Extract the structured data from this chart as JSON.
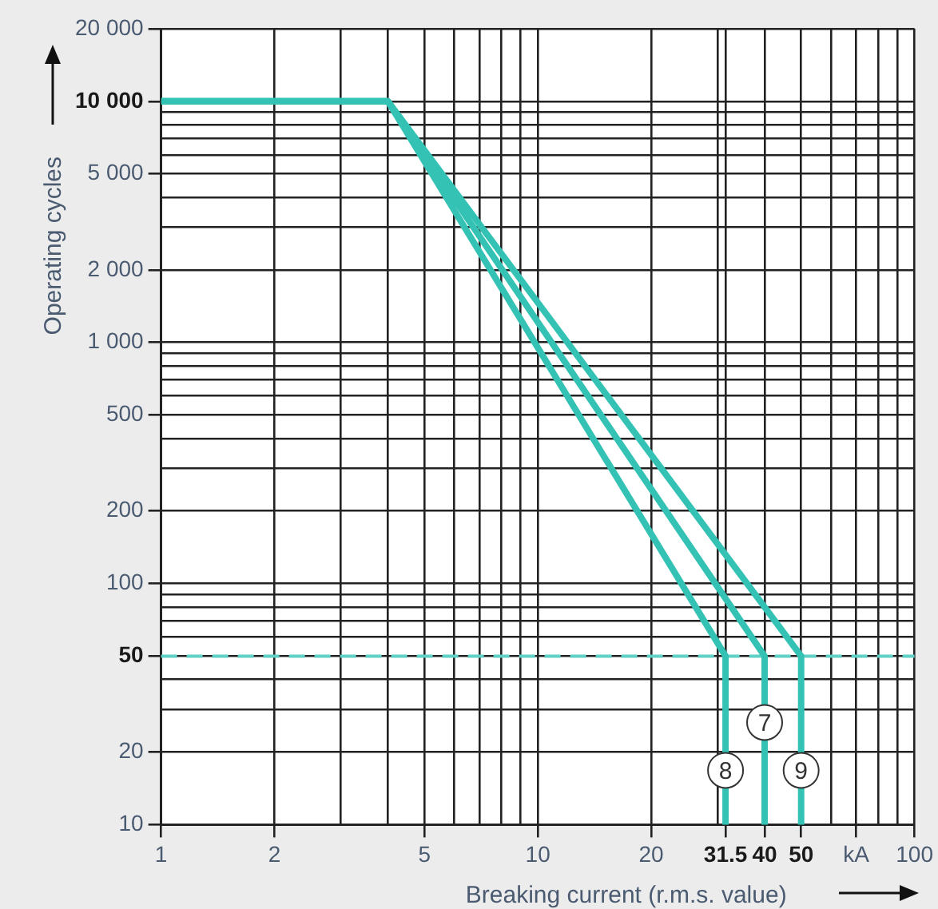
{
  "chart_data": {
    "type": "line",
    "xlabel": "Breaking current (r.m.s. value)",
    "ylabel": "Operating cycles",
    "log": "xy",
    "grid": true,
    "marker": "none",
    "line_style": "solid",
    "xlim": [
      1,
      100
    ],
    "ylim": [
      10,
      20000
    ],
    "xticks": [
      1,
      2,
      {
        "value": 3,
        "label": null
      },
      {
        "value": 4,
        "label": null
      },
      5,
      {
        "value": 6,
        "label": null
      },
      {
        "value": 7,
        "label": null
      },
      {
        "value": 8,
        "label": null
      },
      {
        "value": 9,
        "label": null
      },
      10,
      20,
      {
        "value": 30,
        "label": null
      },
      31.5,
      40,
      50,
      {
        "value": 60,
        "label": null
      },
      {
        "value": 70,
        "label": "kA"
      },
      {
        "value": 80,
        "label": null
      },
      {
        "value": 90,
        "label": null
      },
      100
    ],
    "yticks": [
      10,
      20,
      {
        "value": 30,
        "label": null
      },
      {
        "value": 40,
        "label": null
      },
      50,
      {
        "value": 60,
        "label": null
      },
      {
        "value": 70,
        "label": null
      },
      {
        "value": 80,
        "label": null
      },
      {
        "value": 90,
        "label": null
      },
      100,
      200,
      {
        "value": 300,
        "label": null
      },
      {
        "value": 400,
        "label": null
      },
      500,
      {
        "value": 600,
        "label": null
      },
      {
        "value": 700,
        "label": null
      },
      {
        "value": 800,
        "label": null
      },
      {
        "value": 900,
        "label": null
      },
      {
        "value": 1000,
        "label": "1 000"
      },
      {
        "value": 2000,
        "label": "2 000"
      },
      {
        "value": 3000,
        "label": null
      },
      {
        "value": 4000,
        "label": null
      },
      {
        "value": 5000,
        "label": "5 000"
      },
      {
        "value": 6000,
        "label": null
      },
      {
        "value": 7000,
        "label": null
      },
      {
        "value": 8000,
        "label": null
      },
      {
        "value": 9000,
        "label": null
      },
      {
        "value": 10000,
        "label": "10 000"
      },
      {
        "value": 20000,
        "label": "20 000"
      }
    ],
    "ref_lines": [
      {
        "axis": "y",
        "value": 50,
        "color": "#5fd0c6",
        "line_style": "dashed"
      }
    ],
    "series": [
      {
        "name": "8",
        "color": "#33c2b4",
        "x": [
          1,
          4,
          31.5,
          31.5
        ],
        "values": [
          10000,
          10000,
          50,
          10
        ]
      },
      {
        "name": "7",
        "color": "#33c2b4",
        "x": [
          1,
          4,
          40,
          40
        ],
        "values": [
          10000,
          10000,
          50,
          10
        ]
      },
      {
        "name": "9",
        "color": "#33c2b4",
        "x": [
          1,
          4,
          50,
          50
        ],
        "values": [
          10000,
          10000,
          50,
          10
        ]
      }
    ]
  }
}
